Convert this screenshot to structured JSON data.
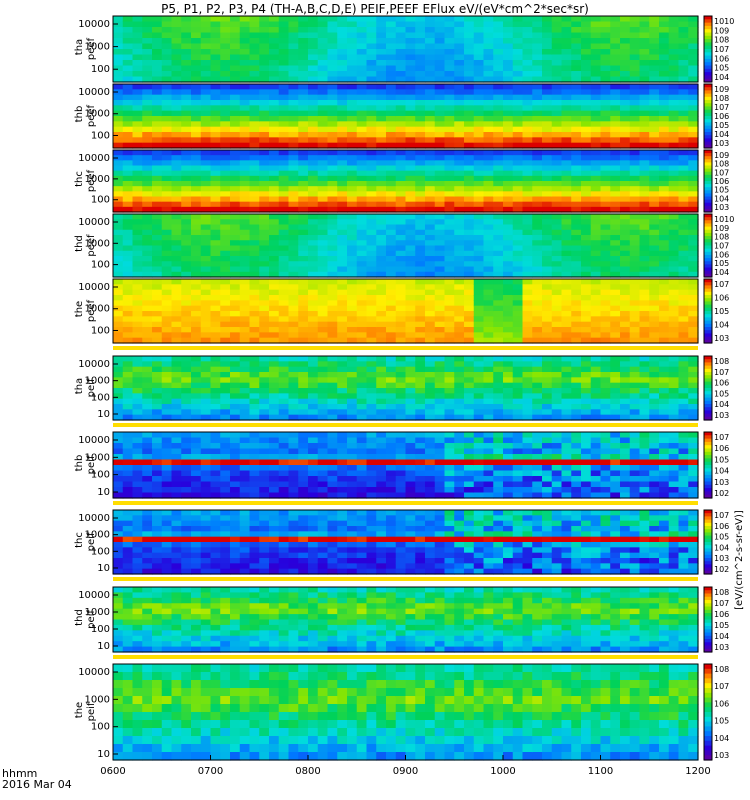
{
  "figure": {
    "title": "P5, P1, P2, P3, P4 (TH-A,B,C,D,E) PEIF,PEEF EFlux eV/(eV*cm^2*sec*sr)",
    "x_label": "hhmm",
    "date_label": "2016 Mar 04"
  },
  "colorbar_unit": "[eV/(cm^2-s-sr-eV)]",
  "chart_data": {
    "type": "heatmap",
    "x_ticks": [
      "0600",
      "0700",
      "0800",
      "0900",
      "1000",
      "1100",
      "1200"
    ],
    "x_range": [
      "0600",
      "1200"
    ],
    "colorscale": "rainbow",
    "panels": [
      {
        "label_top": "tha",
        "label_bottom": "peef",
        "y_ticks": [
          "10000",
          "1000",
          "100"
        ],
        "cbar_ticks": [
          "10^10",
          "10^9",
          "10^8",
          "10^7",
          "10^6",
          "10^5",
          "10^4"
        ],
        "palette": "green",
        "flag_bar": false
      },
      {
        "label_top": "thb",
        "label_bottom": "peef",
        "y_ticks": [
          "10000",
          "1000",
          "100"
        ],
        "cbar_ticks": [
          "10^9",
          "10^8",
          "10^7",
          "10^6",
          "10^5",
          "10^4",
          "10^3"
        ],
        "palette": "hot",
        "flag_bar": false
      },
      {
        "label_top": "thc",
        "label_bottom": "peef",
        "y_ticks": [
          "10000",
          "1000",
          "100"
        ],
        "cbar_ticks": [
          "10^9",
          "10^8",
          "10^7",
          "10^6",
          "10^5",
          "10^4",
          "10^3"
        ],
        "palette": "hot",
        "flag_bar": false
      },
      {
        "label_top": "thd",
        "label_bottom": "peef",
        "y_ticks": [
          "10000",
          "1000",
          "100"
        ],
        "cbar_ticks": [
          "10^10",
          "10^9",
          "10^8",
          "10^7",
          "10^6",
          "10^5",
          "10^4"
        ],
        "palette": "green",
        "flag_bar": false
      },
      {
        "label_top": "the",
        "label_bottom": "peef",
        "y_ticks": [
          "10000",
          "1000",
          "100"
        ],
        "cbar_ticks": [
          "10^7",
          "10^6",
          "10^5",
          "10^4",
          "10^3"
        ],
        "palette": "yellow",
        "flag_bar": true
      },
      {
        "label_top": "tha",
        "label_bottom": "peif",
        "y_ticks": [
          "10000",
          "1000",
          "100",
          "10"
        ],
        "cbar_ticks": [
          "10^8",
          "10^7",
          "10^6",
          "10^5",
          "10^4",
          "10^3"
        ],
        "palette": "ion",
        "flag_bar": true
      },
      {
        "label_top": "thb",
        "label_bottom": "peif",
        "y_ticks": [
          "10000",
          "1000",
          "100",
          "10"
        ],
        "cbar_ticks": [
          "10^7",
          "10^6",
          "10^5",
          "10^4",
          "10^3",
          "10^2"
        ],
        "palette": "ionband",
        "flag_bar": true
      },
      {
        "label_top": "thc",
        "label_bottom": "peif",
        "y_ticks": [
          "10000",
          "1000",
          "100",
          "10"
        ],
        "cbar_ticks": [
          "10^7",
          "10^6",
          "10^5",
          "10^4",
          "10^3",
          "10^2"
        ],
        "palette": "ionband",
        "flag_bar": true
      },
      {
        "label_top": "thd",
        "label_bottom": "peif",
        "y_ticks": [
          "10000",
          "1000",
          "100",
          "10"
        ],
        "cbar_ticks": [
          "10^8",
          "10^7",
          "10^6",
          "10^5",
          "10^4",
          "10^3"
        ],
        "palette": "ion",
        "flag_bar": true
      },
      {
        "label_top": "the",
        "label_bottom": "peif",
        "y_ticks": [
          "10000",
          "1000",
          "100",
          "10"
        ],
        "cbar_ticks": [
          "10^8",
          "10^7",
          "10^6",
          "10^5",
          "10^4",
          "10^3"
        ],
        "palette": "ion",
        "flag_bar": false
      }
    ]
  }
}
